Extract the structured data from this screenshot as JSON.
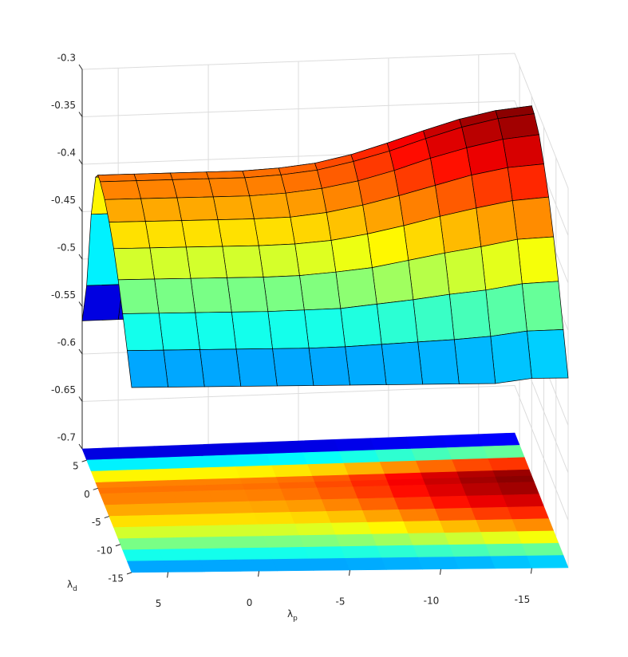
{
  "chart_data": {
    "type": "surface",
    "colormap": "jet",
    "contour_floor": true,
    "grid": true,
    "x": [
      7,
      5,
      3,
      1,
      -1,
      -3,
      -5,
      -7,
      -9,
      -11,
      -13,
      -15,
      -17
    ],
    "y": [
      7,
      5,
      3,
      1,
      0,
      -1,
      -3,
      -5,
      -7,
      -9,
      -11,
      -13,
      -15
    ],
    "z": [
      [
        -0.565,
        -0.565,
        -0.565,
        -0.565,
        -0.565,
        -0.565,
        -0.565,
        -0.565,
        -0.565,
        -0.565,
        -0.565,
        -0.565,
        -0.565
      ],
      [
        -0.516,
        -0.516,
        -0.516,
        -0.516,
        -0.516,
        -0.516,
        -0.515,
        -0.513,
        -0.51,
        -0.507,
        -0.504,
        -0.502,
        -0.501
      ],
      [
        -0.429,
        -0.429,
        -0.429,
        -0.429,
        -0.429,
        -0.427,
        -0.424,
        -0.419,
        -0.411,
        -0.403,
        -0.395,
        -0.389,
        -0.386
      ],
      [
        -0.378,
        -0.378,
        -0.378,
        -0.378,
        -0.378,
        -0.376,
        -0.372,
        -0.364,
        -0.354,
        -0.342,
        -0.332,
        -0.324,
        -0.32
      ],
      [
        -0.37,
        -0.37,
        -0.37,
        -0.37,
        -0.37,
        -0.368,
        -0.364,
        -0.356,
        -0.345,
        -0.333,
        -0.322,
        -0.314,
        -0.31
      ],
      [
        -0.371,
        -0.371,
        -0.371,
        -0.371,
        -0.371,
        -0.369,
        -0.365,
        -0.357,
        -0.347,
        -0.335,
        -0.324,
        -0.316,
        -0.312
      ],
      [
        -0.378,
        -0.378,
        -0.378,
        -0.378,
        -0.378,
        -0.376,
        -0.372,
        -0.365,
        -0.355,
        -0.343,
        -0.333,
        -0.325,
        -0.321
      ],
      [
        -0.39,
        -0.39,
        -0.39,
        -0.39,
        -0.39,
        -0.389,
        -0.385,
        -0.378,
        -0.369,
        -0.359,
        -0.349,
        -0.342,
        -0.339
      ],
      [
        -0.406,
        -0.406,
        -0.406,
        -0.406,
        -0.406,
        -0.405,
        -0.402,
        -0.396,
        -0.388,
        -0.379,
        -0.371,
        -0.364,
        -0.361
      ],
      [
        -0.427,
        -0.427,
        -0.427,
        -0.427,
        -0.427,
        -0.426,
        -0.423,
        -0.419,
        -0.412,
        -0.405,
        -0.399,
        -0.392,
        -0.39
      ],
      [
        -0.451,
        -0.451,
        -0.451,
        -0.451,
        -0.451,
        -0.45,
        -0.449,
        -0.445,
        -0.441,
        -0.436,
        -0.432,
        -0.426,
        -0.424
      ],
      [
        -0.478,
        -0.478,
        -0.478,
        -0.478,
        -0.478,
        -0.478,
        -0.477,
        -0.475,
        -0.473,
        -0.471,
        -0.468,
        -0.463,
        -0.462
      ],
      [
        -0.505,
        -0.505,
        -0.505,
        -0.505,
        -0.505,
        -0.505,
        -0.505,
        -0.505,
        -0.505,
        -0.505,
        -0.505,
        -0.5,
        -0.5
      ]
    ],
    "xlim": [
      -17,
      7
    ],
    "ylim": [
      -15,
      7
    ],
    "zlim": [
      -0.7,
      -0.3
    ],
    "xticks": [
      -15,
      -10,
      -5,
      0,
      5
    ],
    "yticks": [
      -15,
      -10,
      -5,
      0,
      5
    ],
    "zticks": [
      -0.7,
      -0.65,
      -0.6,
      -0.55,
      -0.5,
      -0.45,
      -0.4,
      -0.35,
      -0.3
    ],
    "xlabel": {
      "symbol": "λ",
      "sub": "p"
    },
    "ylabel": {
      "symbol": "λ",
      "sub": "d"
    }
  }
}
